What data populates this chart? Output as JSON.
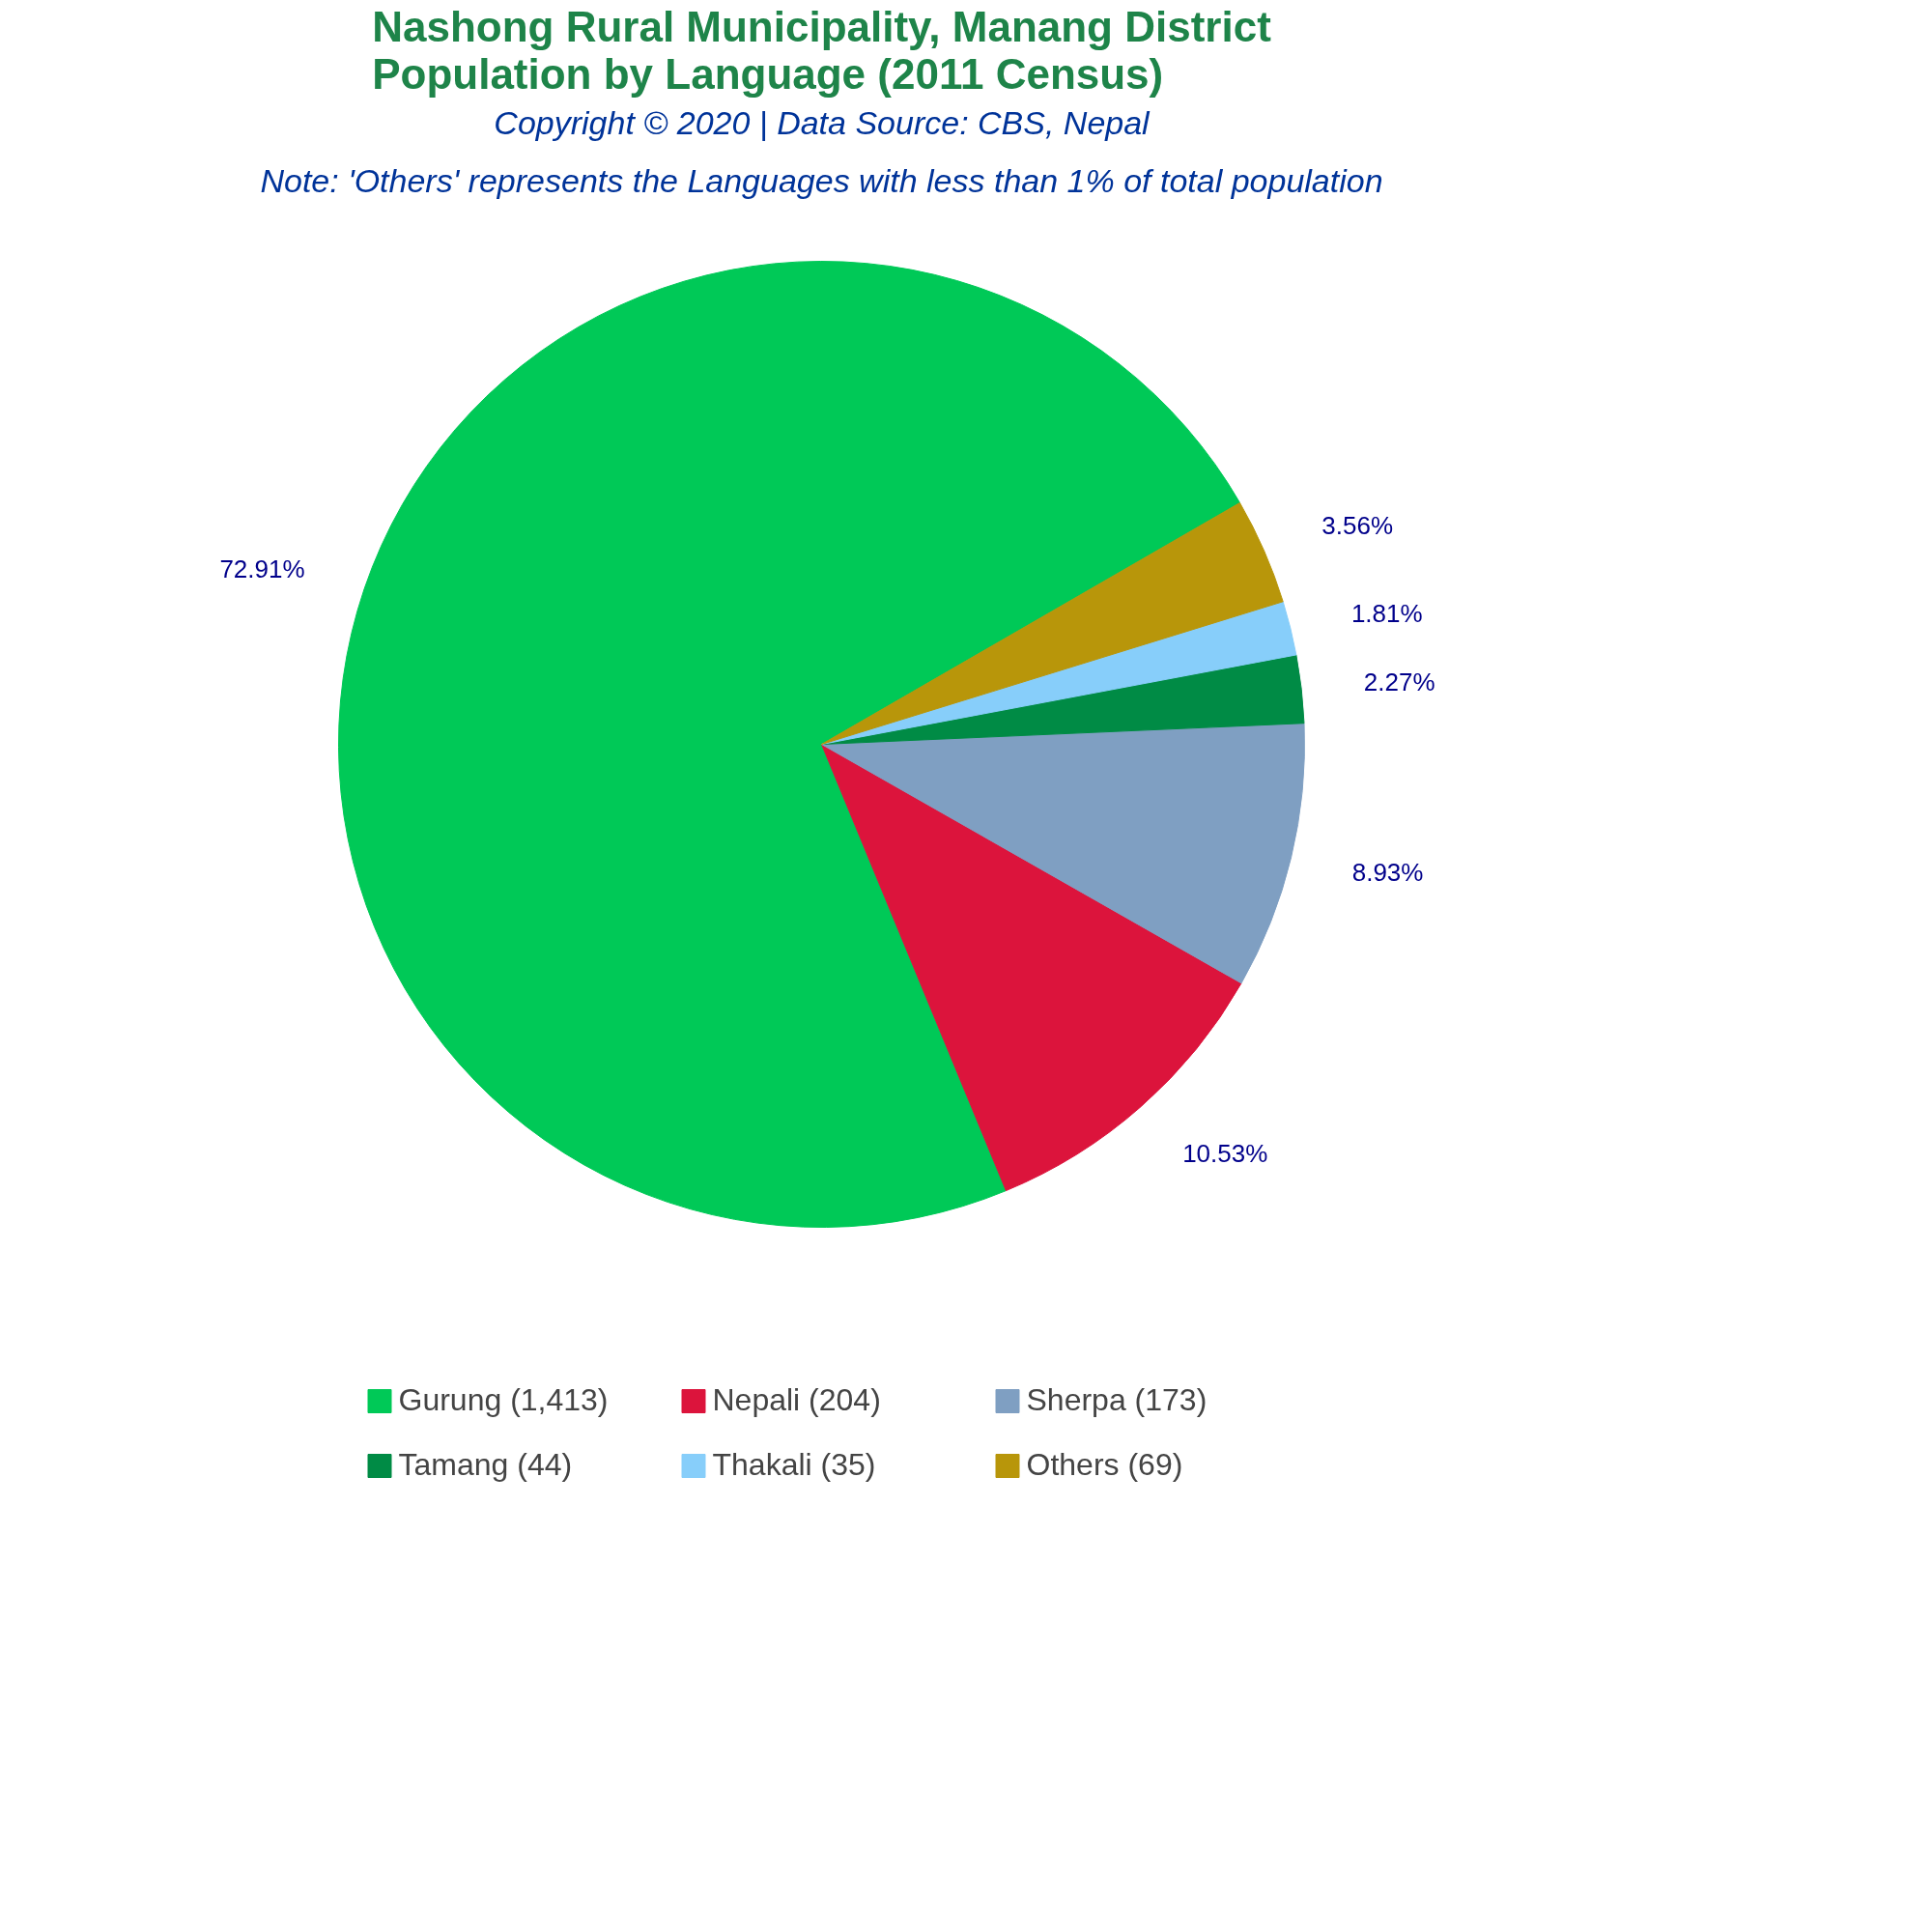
{
  "chart_data": {
    "type": "pie",
    "title": "Nashong Rural Municipality, Manang District\nPopulation by Language (2011 Census)",
    "subtitle": "Copyright © 2020 | Data Source: CBS, Nepal",
    "annotations": [
      "Note: 'Others' represents the Languages with less than 1% of total population"
    ],
    "categories": [
      "Gurung (1,413)",
      "Nepali (204)",
      "Sherpa (173)",
      "Tamang (44)",
      "Thakali (35)",
      "Others (69)"
    ],
    "values": [
      72.91,
      10.53,
      8.93,
      2.27,
      1.81,
      3.56
    ],
    "colors": [
      "#00c957",
      "#dc143c",
      "#7f9fc2",
      "#008b45",
      "#87cefa",
      "#b8960a"
    ],
    "value_labels": [
      "72.91%",
      "10.53%",
      "8.93%",
      "2.27%",
      "1.81%",
      "3.56%"
    ],
    "legend": "bottom"
  }
}
